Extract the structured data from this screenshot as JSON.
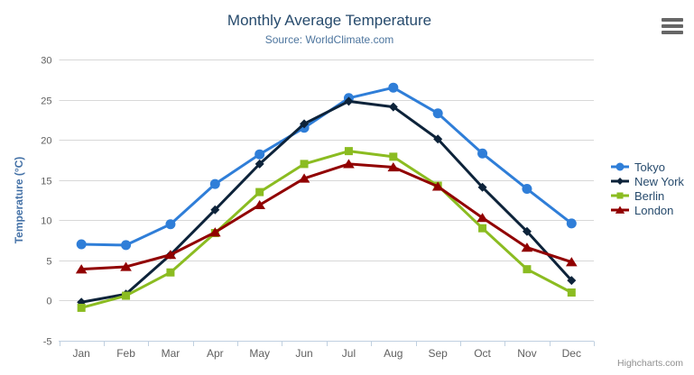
{
  "header": {
    "title": "Monthly Average Temperature",
    "subtitle": "Source: WorldClimate.com"
  },
  "credits": "Highcharts.com",
  "colors": {
    "title": "#274b6d",
    "subtitle": "#4d759e",
    "axis_title": "#4572a7",
    "tick_label": "#606060",
    "gridline": "#d8d8d8",
    "axis_line": "#c0d0e0",
    "legend_text": "#274b6d",
    "credits_text": "#909090",
    "menu_icon": "#666666",
    "background": "#ffffff"
  },
  "chart_data": {
    "type": "line",
    "title": "Monthly Average Temperature",
    "subtitle": "Source: WorldClimate.com",
    "xlabel": "",
    "ylabel": "Temperature (°C)",
    "ylim": [
      -5,
      30
    ],
    "ytick_step": 5,
    "grid": true,
    "legend_position": "right",
    "categories": [
      "Jan",
      "Feb",
      "Mar",
      "Apr",
      "May",
      "Jun",
      "Jul",
      "Aug",
      "Sep",
      "Oct",
      "Nov",
      "Dec"
    ],
    "series": [
      {
        "name": "Tokyo",
        "color": "#2f7ed8",
        "marker": "circle",
        "values": [
          7.0,
          6.9,
          9.5,
          14.5,
          18.2,
          21.5,
          25.2,
          26.5,
          23.3,
          18.3,
          13.9,
          9.6
        ]
      },
      {
        "name": "New York",
        "color": "#0d233a",
        "marker": "diamond",
        "values": [
          -0.2,
          0.8,
          5.7,
          11.3,
          17.0,
          22.0,
          24.8,
          24.1,
          20.1,
          14.1,
          8.6,
          2.5
        ]
      },
      {
        "name": "Berlin",
        "color": "#8bbc21",
        "marker": "square",
        "values": [
          -0.9,
          0.6,
          3.5,
          8.4,
          13.5,
          17.0,
          18.6,
          17.9,
          14.3,
          9.0,
          3.9,
          1.0
        ]
      },
      {
        "name": "London",
        "color": "#910000",
        "marker": "triangle",
        "values": [
          3.9,
          4.2,
          5.7,
          8.5,
          11.9,
          15.2,
          17.0,
          16.6,
          14.2,
          10.3,
          6.6,
          4.8
        ]
      }
    ]
  }
}
